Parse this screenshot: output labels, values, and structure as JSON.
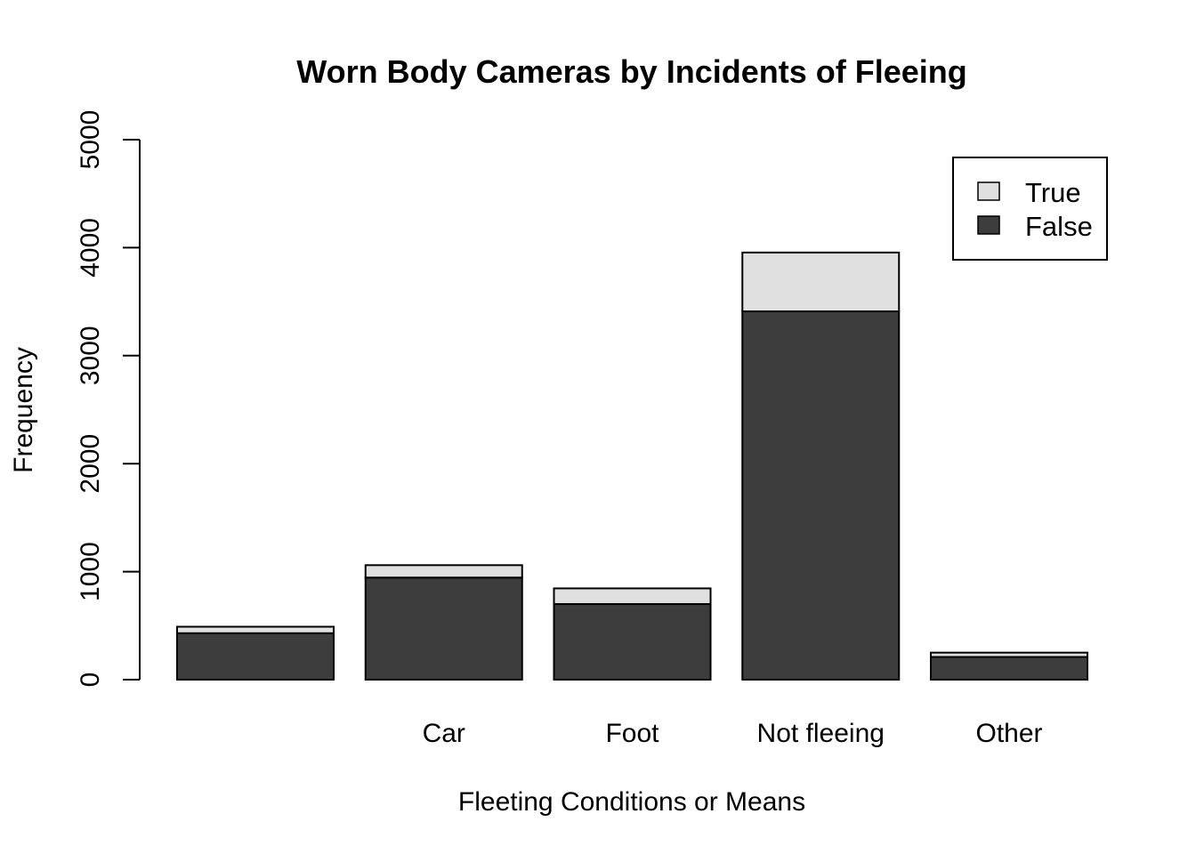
{
  "chart_data": {
    "type": "bar",
    "stacked": true,
    "title": "Worn Body Cameras by Incidents of Fleeing",
    "xlabel": "Fleeting Conditions or Means",
    "ylabel": "Frequency",
    "categories": [
      "",
      "Car",
      "Foot",
      "Not fleeing",
      "Other"
    ],
    "series": [
      {
        "name": "False",
        "color": "#3d3d3d",
        "values": [
          430,
          945,
          700,
          3410,
          210
        ]
      },
      {
        "name": "True",
        "color": "#e0e0e0",
        "values": [
          60,
          115,
          145,
          545,
          40
        ]
      }
    ],
    "ylim": [
      0,
      5000
    ],
    "yticks": [
      "0",
      "1000",
      "2000",
      "3000",
      "4000",
      "5000"
    ],
    "grid": false,
    "legend": {
      "position": "top-right",
      "entries": [
        "True",
        "False"
      ]
    }
  }
}
